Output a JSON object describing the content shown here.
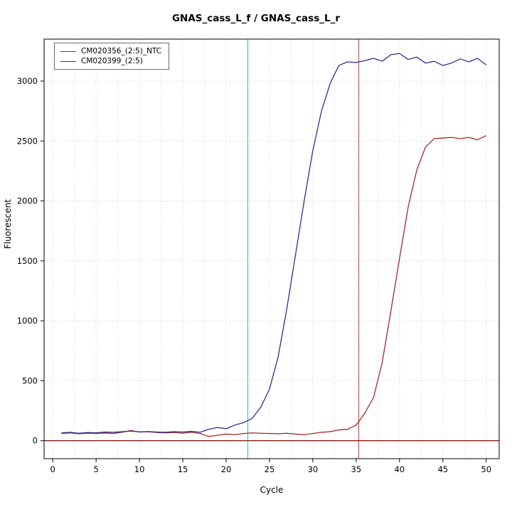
{
  "chart_data": {
    "type": "line",
    "title": "GNAS_cass_L_f / GNAS_cass_L_r",
    "xlabel": "Cycle",
    "ylabel": "Fluorescent",
    "xlim": [
      -1,
      51.5
    ],
    "ylim": [
      -150,
      3350
    ],
    "xticks": [
      0,
      5,
      10,
      15,
      20,
      25,
      30,
      35,
      40,
      45,
      50
    ],
    "yticks": [
      0,
      500,
      1000,
      1500,
      2000,
      2500,
      3000
    ],
    "grid": {
      "x_step": 2.5,
      "y_step": 500,
      "color": "#cccccc"
    },
    "x": [
      1,
      2,
      3,
      4,
      5,
      6,
      7,
      8,
      9,
      10,
      11,
      12,
      13,
      14,
      15,
      16,
      17,
      18,
      19,
      20,
      21,
      22,
      23,
      24,
      25,
      26,
      27,
      28,
      29,
      30,
      31,
      32,
      33,
      34,
      35,
      36,
      37,
      38,
      39,
      40,
      41,
      42,
      43,
      44,
      45,
      46,
      47,
      48,
      49,
      50
    ],
    "series": [
      {
        "name": "CM020356_(2:5)_NTC",
        "color": "#a52a2a",
        "values": [
          60,
          65,
          58,
          62,
          60,
          64,
          60,
          70,
          85,
          72,
          75,
          68,
          65,
          68,
          62,
          70,
          60,
          35,
          45,
          55,
          50,
          60,
          65,
          62,
          60,
          58,
          62,
          55,
          50,
          60,
          70,
          75,
          90,
          95,
          130,
          230,
          360,
          650,
          1080,
          1520,
          1950,
          2260,
          2450,
          2520,
          2525,
          2530,
          2520,
          2530,
          2510,
          2545
        ]
      },
      {
        "name": "CM020399_(2:5)",
        "color": "#2f2f8f",
        "values": [
          65,
          70,
          62,
          68,
          66,
          72,
          70,
          75,
          80,
          74,
          76,
          72,
          70,
          75,
          72,
          78,
          70,
          95,
          110,
          100,
          130,
          150,
          185,
          280,
          430,
          700,
          1100,
          1550,
          2000,
          2420,
          2750,
          2980,
          3130,
          3160,
          3155,
          3170,
          3190,
          3165,
          3220,
          3230,
          3180,
          3200,
          3150,
          3165,
          3130,
          3150,
          3185,
          3160,
          3190,
          3135
        ]
      }
    ],
    "ref_lines": [
      {
        "orientation": "vertical",
        "x": 22.5,
        "color": "#00e0e0",
        "name": "cyan-threshold-line"
      },
      {
        "orientation": "vertical",
        "x": 35.3,
        "color": "#bf5b5b",
        "name": "red-threshold-line"
      },
      {
        "orientation": "horizontal",
        "y": 0,
        "color": "#8b1a1a",
        "name": "baseline-line"
      }
    ],
    "legend_position": "top-left"
  }
}
